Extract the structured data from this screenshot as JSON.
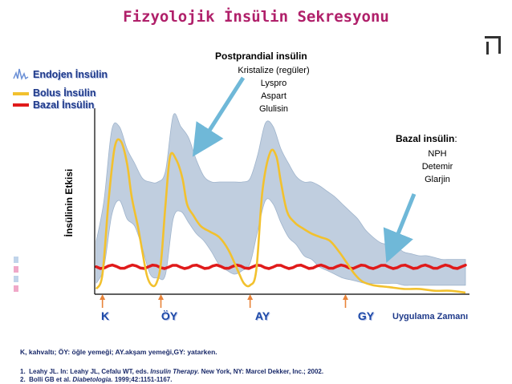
{
  "title": "Fizyolojik İnsülin Sekresyonu",
  "legend": [
    {
      "label": "Endojen İnsülin",
      "icon": "endogenous-spike-icon",
      "color": "#6a8fd6"
    },
    {
      "label": "Bolus İnsülin",
      "color": "#f2c12e"
    },
    {
      "label": "Bazal İnsülin",
      "color": "#e01b1b"
    }
  ],
  "annotations": {
    "postprandial": {
      "heading": "Postprandial insülin",
      "items": [
        "Kristalize (regüler)",
        "Lyspro",
        "Aspart",
        "Glulisin"
      ]
    },
    "basal": {
      "heading": "Bazal insülin",
      "items": [
        "NPH",
        "Detemir",
        "Glarjin"
      ]
    }
  },
  "chart_data": {
    "type": "line",
    "title": "Fizyolojik İnsülin Sekresyonu",
    "ylabel": "İnsülinin Etkisi",
    "xlabel": "Uygulama Zamanı",
    "categories": [
      "K",
      "ÖY",
      "AY",
      "GY"
    ],
    "x_range": [
      0,
      24
    ],
    "y_range": [
      0,
      1
    ],
    "meal_markers_x": [
      0.4,
      4.2,
      10.0,
      16.2
    ],
    "series": [
      {
        "name": "Endojen İnsülin",
        "kind": "band",
        "color": "#b9c9dc",
        "x": [
          0,
          0.5,
          1,
          1.5,
          2,
          2.5,
          3,
          3.5,
          4,
          4.5,
          5,
          5.5,
          6,
          6.5,
          7,
          7.5,
          8,
          8.5,
          9,
          9.5,
          10,
          10.5,
          11,
          11.5,
          12,
          12.5,
          13,
          13.5,
          14,
          14.5,
          15,
          15.5,
          16,
          16.5,
          17,
          17.5,
          18,
          18.5,
          19,
          19.5,
          20,
          20.5,
          21,
          21.5,
          22,
          22.5,
          23,
          23.5,
          24
        ],
        "upper": [
          0.28,
          0.5,
          0.88,
          0.9,
          0.78,
          0.7,
          0.62,
          0.6,
          0.6,
          0.66,
          0.96,
          0.9,
          0.84,
          0.72,
          0.63,
          0.6,
          0.6,
          0.6,
          0.6,
          0.6,
          0.62,
          0.75,
          0.92,
          0.9,
          0.78,
          0.7,
          0.63,
          0.6,
          0.6,
          0.58,
          0.55,
          0.52,
          0.48,
          0.44,
          0.4,
          0.34,
          0.3,
          0.27,
          0.26,
          0.25,
          0.22,
          0.21,
          0.2,
          0.2,
          0.19,
          0.18,
          0.18,
          0.18,
          0.18
        ],
        "lower": [
          0.05,
          0.14,
          0.42,
          0.5,
          0.4,
          0.36,
          0.24,
          0.1,
          0.08,
          0.1,
          0.4,
          0.44,
          0.38,
          0.32,
          0.28,
          0.22,
          0.15,
          0.12,
          0.1,
          0.12,
          0.16,
          0.34,
          0.5,
          0.48,
          0.38,
          0.3,
          0.26,
          0.2,
          0.18,
          0.14,
          0.12,
          0.1,
          0.08,
          0.07,
          0.06,
          0.05,
          0.05,
          0.05,
          0.05,
          0.05,
          0.04,
          0.04,
          0.04,
          0.04,
          0.04,
          0.04,
          0.04,
          0.04,
          0.04
        ]
      },
      {
        "name": "Bolus İnsülin",
        "color": "#f2c12e",
        "x": [
          0,
          0.4,
          0.8,
          1.2,
          1.6,
          2.0,
          2.3,
          2.7,
          3.0,
          3.3,
          3.6,
          3.9,
          4.2,
          4.5,
          4.8,
          5.2,
          5.6,
          5.9,
          6.3,
          6.8,
          7.4,
          8.0,
          8.6,
          9.2,
          9.6,
          10.0,
          10.4,
          10.8,
          11.3,
          11.7,
          12.0,
          12.4,
          12.9,
          13.4,
          14.0,
          14.6,
          15.2,
          15.8,
          16.3,
          16.8,
          17.3,
          18.0,
          19.0,
          20.0,
          21.0,
          22.0,
          23.0,
          24.0
        ],
        "y": [
          0.02,
          0.1,
          0.5,
          0.79,
          0.82,
          0.7,
          0.52,
          0.36,
          0.22,
          0.09,
          0.04,
          0.05,
          0.16,
          0.48,
          0.74,
          0.72,
          0.62,
          0.48,
          0.42,
          0.36,
          0.33,
          0.3,
          0.23,
          0.12,
          0.05,
          0.04,
          0.12,
          0.55,
          0.76,
          0.74,
          0.6,
          0.44,
          0.38,
          0.35,
          0.32,
          0.3,
          0.28,
          0.22,
          0.16,
          0.1,
          0.06,
          0.04,
          0.03,
          0.02,
          0.02,
          0.01,
          0.01,
          0.0
        ]
      },
      {
        "name": "Bazal İnsülin",
        "color": "#e01b1b",
        "x": [
          0,
          24
        ],
        "y": [
          0.14,
          0.14
        ]
      }
    ]
  },
  "note": "K, kahvaltı; ÖY: öğle yemeği; AY.akşam yemeği,GY: yatarken.",
  "references": [
    {
      "num": "1.",
      "pre": "Leahy JL. In: Leahy JL, Cefalu WT, eds.",
      "ital": "Insulin Therapy.",
      "post": "New York, NY: Marcel Dekker, Inc.; 2002."
    },
    {
      "num": "2.",
      "pre": "Bolli GB et al.",
      "ital": "Diabetologia.",
      "post": "1999;42:1151-1167."
    }
  ],
  "colors": {
    "title": "#b0206a",
    "arrow": "#6fb8d8",
    "category": "#1d49a8",
    "meal_marker": "#e8843a",
    "side_bars": [
      "#c0d4ea",
      "#f0a8c8",
      "#c0d4ea",
      "#f0a8c8"
    ]
  }
}
